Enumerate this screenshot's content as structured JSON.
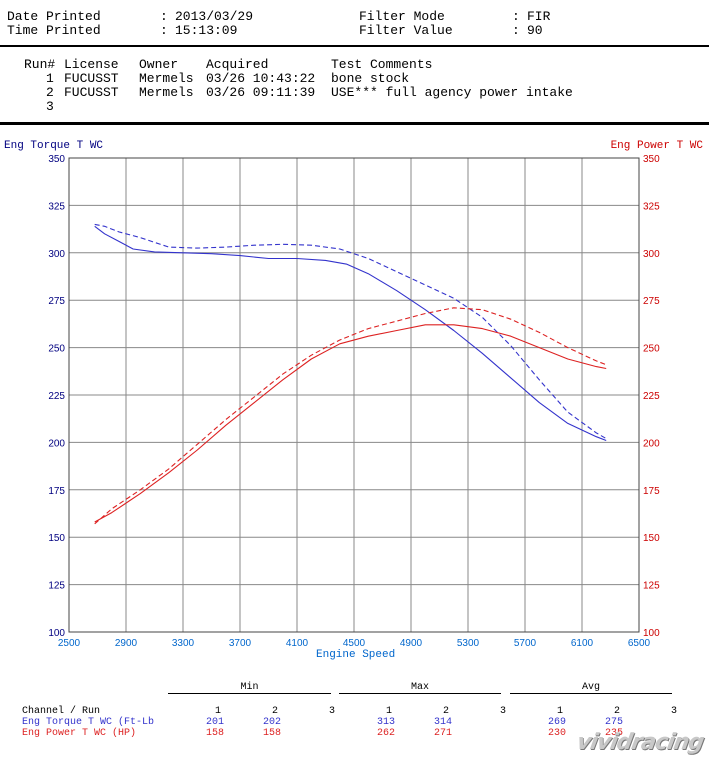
{
  "header": {
    "date_label": "Date Printed",
    "date_value": "2013/03/29",
    "time_label": "Time Printed",
    "time_value": "15:13:09",
    "filter_mode_label": "Filter Mode",
    "filter_mode_value": "FIR",
    "filter_value_label": "Filter Value",
    "filter_value_value": "90"
  },
  "runs": {
    "columns": [
      "Run#",
      "License",
      "Owner",
      "Acquired",
      "Test Comments"
    ],
    "rows": [
      {
        "run": "1",
        "license": "FUCUSST",
        "owner": "Mermels",
        "acquired": "03/26 10:43:22",
        "comment": "bone stock"
      },
      {
        "run": "2",
        "license": "FUCUSST",
        "owner": "Mermels",
        "acquired": "03/26 09:11:39",
        "comment": "USE*** full agency power intake"
      },
      {
        "run": "3",
        "license": "",
        "owner": "",
        "acquired": "",
        "comment": ""
      }
    ]
  },
  "chart_data": {
    "type": "line",
    "xlabel": "Engine Speed",
    "ylabel_left": "Eng Torque T WC",
    "ylabel_right": "Eng Power T WC",
    "xlim": [
      2500,
      6500
    ],
    "ylim": [
      100,
      350
    ],
    "x_ticks": [
      2500,
      2900,
      3300,
      3700,
      4100,
      4500,
      4900,
      5300,
      5700,
      6100,
      6500
    ],
    "y_ticks": [
      100,
      125,
      150,
      175,
      200,
      225,
      250,
      275,
      300,
      325,
      350
    ],
    "grid": true,
    "colors": {
      "torque": "#3333cc",
      "power": "#dd2222",
      "left_axis": "#000080",
      "right_axis": "#cc0000",
      "x_axis": "#0066cc"
    },
    "series": [
      {
        "channel": "torque",
        "run": 1,
        "style": "solid",
        "x": [
          2680,
          2750,
          2850,
          2950,
          3100,
          3300,
          3500,
          3700,
          3900,
          4100,
          4300,
          4450,
          4600,
          4800,
          5000,
          5200,
          5400,
          5600,
          5800,
          6000,
          6200,
          6270
        ],
        "y": [
          314,
          310,
          306,
          302,
          300.5,
          300,
          299.5,
          298.5,
          297,
          297,
          296,
          294,
          289,
          280,
          270,
          259,
          247,
          234,
          221,
          210,
          203,
          201
        ]
      },
      {
        "channel": "torque",
        "run": 2,
        "style": "dashed",
        "x": [
          2680,
          2750,
          2850,
          3000,
          3200,
          3400,
          3600,
          3800,
          4000,
          4200,
          4400,
          4600,
          4800,
          5000,
          5200,
          5400,
          5600,
          5800,
          6000,
          6200,
          6270
        ],
        "y": [
          315,
          314,
          311,
          308,
          303,
          302.5,
          303,
          304,
          304.5,
          304,
          302,
          297,
          290,
          283,
          276,
          266,
          251,
          233,
          216,
          205,
          202
        ]
      },
      {
        "channel": "power",
        "run": 1,
        "style": "solid",
        "x": [
          2680,
          2800,
          3000,
          3200,
          3400,
          3600,
          3800,
          4000,
          4200,
          4400,
          4600,
          4800,
          5000,
          5200,
          5400,
          5600,
          5800,
          6000,
          6200,
          6270
        ],
        "y": [
          158,
          163,
          173,
          184,
          196,
          209,
          221,
          233,
          244,
          252,
          256,
          259,
          262,
          262,
          260,
          256,
          250,
          244,
          240,
          239
        ]
      },
      {
        "channel": "power",
        "run": 2,
        "style": "dashed",
        "x": [
          2680,
          2800,
          3000,
          3200,
          3400,
          3600,
          3800,
          4000,
          4200,
          4400,
          4600,
          4800,
          5000,
          5200,
          5400,
          5600,
          5800,
          6000,
          6200,
          6270
        ],
        "y": [
          157,
          165,
          175,
          186,
          199,
          212,
          224,
          236,
          246,
          254,
          260,
          264,
          268,
          271,
          270,
          265,
          258,
          250,
          243,
          241
        ]
      }
    ]
  },
  "summary": {
    "group_headers": [
      "Min",
      "Max",
      "Avg"
    ],
    "channel_run_label": "Channel / Run",
    "run_numbers": [
      "1",
      "2",
      "3"
    ],
    "rows": [
      {
        "channel": "Eng Torque T WC (Ft-Lb",
        "min": [
          "201",
          "202",
          ""
        ],
        "max": [
          "313",
          "314",
          ""
        ],
        "avg": [
          "269",
          "275",
          ""
        ]
      },
      {
        "channel": "Eng Power T WC (HP)",
        "min": [
          "158",
          "158",
          ""
        ],
        "max": [
          "262",
          "271",
          ""
        ],
        "avg": [
          "230",
          "235",
          ""
        ]
      }
    ]
  },
  "watermark": "vividracing"
}
